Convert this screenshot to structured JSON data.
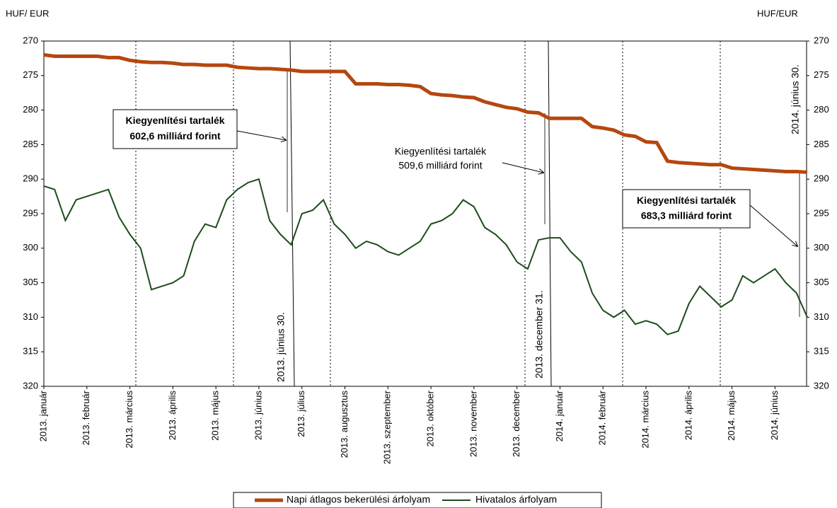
{
  "chart_data": {
    "type": "line",
    "y_label_left": "HUF/ EUR",
    "y_label_right": "HUF/EUR",
    "categories": [
      "2013. január",
      null,
      null,
      null,
      "2013. február",
      null,
      null,
      null,
      "2013. március",
      null,
      null,
      null,
      "2013. április",
      null,
      null,
      null,
      "2013. május",
      null,
      null,
      null,
      "2013. június",
      null,
      null,
      null,
      "2013. július",
      null,
      null,
      null,
      "2013. augusztus",
      null,
      null,
      null,
      "2013. szeptember",
      null,
      null,
      null,
      "2013. október",
      null,
      null,
      null,
      "2013. november",
      null,
      null,
      null,
      "2013. december",
      null,
      null,
      null,
      "2014. január",
      null,
      null,
      null,
      "2014. február",
      null,
      null,
      null,
      "2014. március",
      null,
      null,
      null,
      "2014. április",
      null,
      null,
      null,
      "2014. május",
      null,
      null,
      null,
      "2014. június",
      null,
      null,
      null
    ],
    "series": [
      {
        "name": "Napi átlagos bekerülési árfolyam",
        "color": "#b5470f",
        "values": [
          272,
          272.2,
          272.2,
          272.2,
          272.2,
          272.2,
          272.4,
          272.4,
          272.8,
          273,
          273.1,
          273.1,
          273.2,
          273.4,
          273.4,
          273.5,
          273.5,
          273.5,
          273.8,
          273.9,
          274,
          274,
          274.1,
          274.2,
          274.4,
          274.4,
          274.4,
          274.4,
          274.4,
          276.2,
          276.2,
          276.2,
          276.3,
          276.3,
          276.4,
          276.6,
          277.6,
          277.8,
          277.9,
          278.1,
          278.2,
          278.8,
          279.2,
          279.6,
          279.8,
          280.3,
          280.4,
          281.2,
          281.2,
          281.2,
          281.2,
          282.4,
          282.6,
          282.9,
          283.6,
          283.8,
          284.6,
          284.7,
          287.4,
          287.6,
          287.7,
          287.8,
          287.9,
          287.9,
          288.4,
          288.5,
          288.6,
          288.7,
          288.8,
          288.9,
          288.9,
          289
        ]
      },
      {
        "name": "Hivatalos árfolyam",
        "color": "#1d4d1a",
        "values": [
          291,
          291.5,
          296,
          293,
          292.5,
          292,
          291.5,
          295.5,
          298,
          300,
          306,
          305.5,
          305,
          304,
          299,
          296.5,
          297,
          293,
          291.5,
          290.5,
          290,
          296,
          298,
          299.5,
          295,
          294.5,
          293,
          296.5,
          298,
          300,
          299,
          299.5,
          300.5,
          301,
          300,
          299,
          296.5,
          296,
          295,
          293,
          294,
          297,
          298,
          299.5,
          302,
          303,
          298.8,
          298.5,
          298.5,
          300.5,
          302,
          306.5,
          309,
          310,
          309,
          311,
          310.5,
          311,
          312.5,
          312,
          308,
          305.5,
          307,
          308.5,
          307.5,
          304,
          305,
          304,
          303,
          305,
          306.5,
          310
        ]
      }
    ],
    "ylim": [
      320,
      270
    ],
    "yticks": [
      270,
      275,
      280,
      285,
      290,
      295,
      300,
      305,
      310,
      315,
      320
    ],
    "y2lim": [
      320,
      270
    ],
    "y2ticks": [
      270,
      275,
      280,
      285,
      290,
      295,
      300,
      305,
      310,
      315,
      320
    ],
    "markers": [
      "2013. június 30.",
      "2013. december 31.",
      "2014. június 30."
    ],
    "annotations": [
      [
        "Kiegyenlítési tartalék",
        "602,6  milliárd forint"
      ],
      [
        "Kiegyenlítési tartalék",
        "509,6  milliárd forint"
      ],
      [
        "Kiegyenlítési tartalék",
        "683,3  milliárd forint"
      ]
    ]
  }
}
